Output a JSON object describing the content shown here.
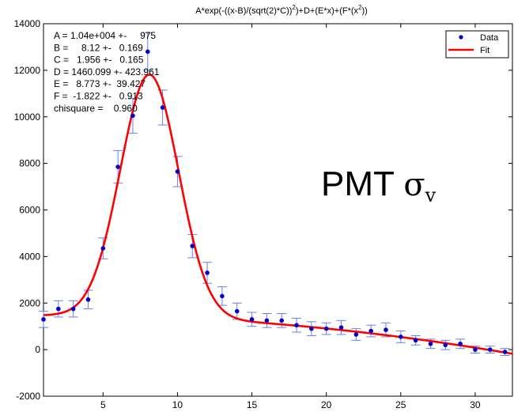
{
  "chart_data": {
    "type": "scatter",
    "title_prefix": "A*exp(-((x-B)/(sqrt(2)*C))",
    "title_sup": "2",
    "title_mid": ")+D+(E*x)+(F*(x",
    "title_sup2": "2",
    "title_suffix": "))",
    "xlim": [
      1,
      32.5
    ],
    "ylim": [
      -2000,
      14000
    ],
    "xticks": [
      5,
      10,
      15,
      20,
      25,
      30
    ],
    "yticks": [
      -2000,
      0,
      2000,
      4000,
      6000,
      8000,
      10000,
      12000,
      14000
    ],
    "legend": {
      "placement": "top-right",
      "entries": [
        "Data",
        "Fit"
      ]
    },
    "fit_results": [
      "A = 1.04e+004 +-     975",
      "B =     8.12 +-   0.169",
      "C =   1.956 +-   0.165",
      "D = 1460.099 +- 423.961",
      "E =   8.773 +-  39.427",
      "F =  -1.822 +-   0.913",
      "chisquare =    0.960"
    ],
    "fit_params": {
      "A": 10400,
      "B": 8.12,
      "C": 1.956,
      "D": 1460.099,
      "E": 8.773,
      "F": -1.822
    },
    "series": [
      {
        "name": "Data",
        "x": [
          1,
          2,
          3,
          4,
          5,
          6,
          7,
          8,
          9,
          10,
          11,
          12,
          13,
          14,
          15,
          16,
          17,
          18,
          19,
          20,
          21,
          22,
          23,
          24,
          25,
          26,
          27,
          28,
          29,
          30,
          31,
          32
        ],
        "y": [
          1300,
          1750,
          1750,
          2150,
          4350,
          7850,
          10050,
          12800,
          10400,
          7650,
          4450,
          3300,
          2300,
          1650,
          1300,
          1250,
          1250,
          1050,
          900,
          900,
          950,
          650,
          800,
          850,
          550,
          400,
          250,
          200,
          250,
          0,
          0,
          -100
        ],
        "err": [
          350,
          350,
          350,
          400,
          450,
          700,
          750,
          800,
          750,
          650,
          500,
          450,
          400,
          350,
          300,
          300,
          300,
          300,
          300,
          250,
          300,
          250,
          250,
          300,
          250,
          200,
          200,
          200,
          200,
          150,
          150,
          150
        ],
        "color": "#0000cc",
        "errcolor": "#6a7ef0"
      },
      {
        "name": "Fit",
        "color": "#ff0000"
      }
    ]
  },
  "annotation": {
    "main": "PMT ",
    "sigma": "σ",
    "sub": "v"
  }
}
